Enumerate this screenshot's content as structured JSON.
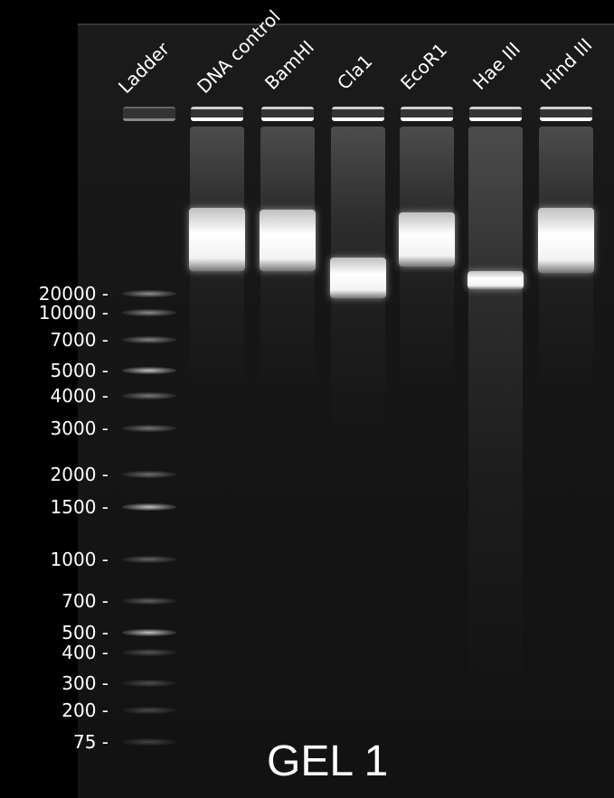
{
  "title": "GEL 1",
  "lanes": [
    {
      "label": "Ladder"
    },
    {
      "label": "DNA control"
    },
    {
      "label": "BamHI"
    },
    {
      "label": "Cla1"
    },
    {
      "label": "EcoR1"
    },
    {
      "label": "Hae III"
    },
    {
      "label": "Hind III"
    }
  ],
  "ladder_markers": [
    "20000 -",
    "10000 -",
    "7000 -",
    "5000 -",
    "4000 -",
    "3000 -",
    "2000 -",
    "1500 -",
    "1000 -",
    "700 -",
    "500 -",
    "400 -",
    "300 -",
    "200 -",
    "75 -"
  ],
  "colors": {
    "background": "#000000",
    "gel": "#161616",
    "band": "#ffffff"
  }
}
